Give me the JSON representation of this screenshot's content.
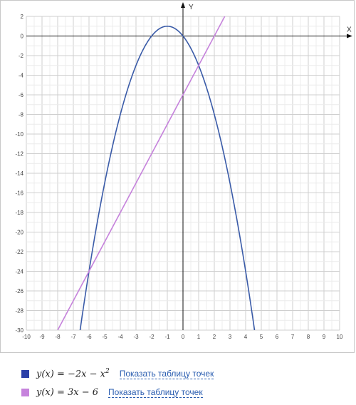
{
  "chart_data": {
    "type": "line",
    "title": "",
    "xlabel": "X",
    "ylabel": "Y",
    "xlim": [
      -10,
      10
    ],
    "ylim": [
      -30,
      2
    ],
    "x_ticks": [
      -10,
      -9,
      -8,
      -7,
      -6,
      -5,
      -4,
      -3,
      -2,
      -1,
      0,
      1,
      2,
      3,
      4,
      5,
      6,
      7,
      8,
      9,
      10
    ],
    "y_ticks": [
      2,
      0,
      -2,
      -4,
      -6,
      -8,
      -10,
      -12,
      -14,
      -16,
      -18,
      -20,
      -22,
      -24,
      -26,
      -28,
      -30
    ],
    "x_tick_labels": [
      "-10",
      "-9",
      "-8",
      "-7",
      "-6",
      "-5",
      "-4",
      "-3",
      "-2",
      "-1",
      "0",
      "1",
      "2",
      "3",
      "4",
      "5",
      "6",
      "7",
      "8",
      "9",
      "10"
    ],
    "y_tick_labels": [
      "2",
      "0",
      "-2",
      "-4",
      "-6",
      "-8",
      "-10",
      "-12",
      "-14",
      "-16",
      "-18",
      "-20",
      "-22",
      "-24",
      "-26",
      "-28",
      "-30"
    ],
    "grid": true,
    "legend": "below",
    "series": [
      {
        "formula": "y(x) = −2x − x²",
        "color": "#3a5ba8",
        "x": [
          -6.6,
          -6.4,
          -6.2,
          -6,
          -5.6,
          -5.2,
          -4.8,
          -4.4,
          -4,
          -3.6,
          -3.2,
          -2.8,
          -2.4,
          -2,
          -1.6,
          -1.2,
          -1,
          -0.8,
          -0.4,
          0,
          0.4,
          0.8,
          1.2,
          1.6,
          2,
          2.4,
          2.8,
          3.2,
          3.6,
          4,
          4.4,
          4.6
        ],
        "y": [
          -30.36,
          -28.16,
          -26.04,
          -24,
          -20.16,
          -16.64,
          -13.44,
          -10.56,
          -8,
          -5.76,
          -3.84,
          -2.24,
          -0.96,
          0,
          0.64,
          0.96,
          1,
          0.96,
          0.64,
          0,
          -0.96,
          -2.24,
          -3.84,
          -5.76,
          -8,
          -10.56,
          -13.44,
          -16.64,
          -20.16,
          -24,
          -28.16,
          -30.36
        ]
      },
      {
        "formula": "y(x) = 3x − 6",
        "color": "#c683dc",
        "x": [
          -8,
          2.6667
        ],
        "y": [
          -30,
          2
        ]
      }
    ]
  },
  "legend": {
    "items": [
      {
        "formula_main": "y(x) = −2x − x",
        "formula_sup": "2",
        "link": "Показать таблицу точек",
        "color": "#2b3fa8"
      },
      {
        "formula_main": "y(x) = 3x − 6",
        "formula_sup": "",
        "link": "Показать таблицу точек",
        "color": "#c683dc"
      }
    ]
  }
}
